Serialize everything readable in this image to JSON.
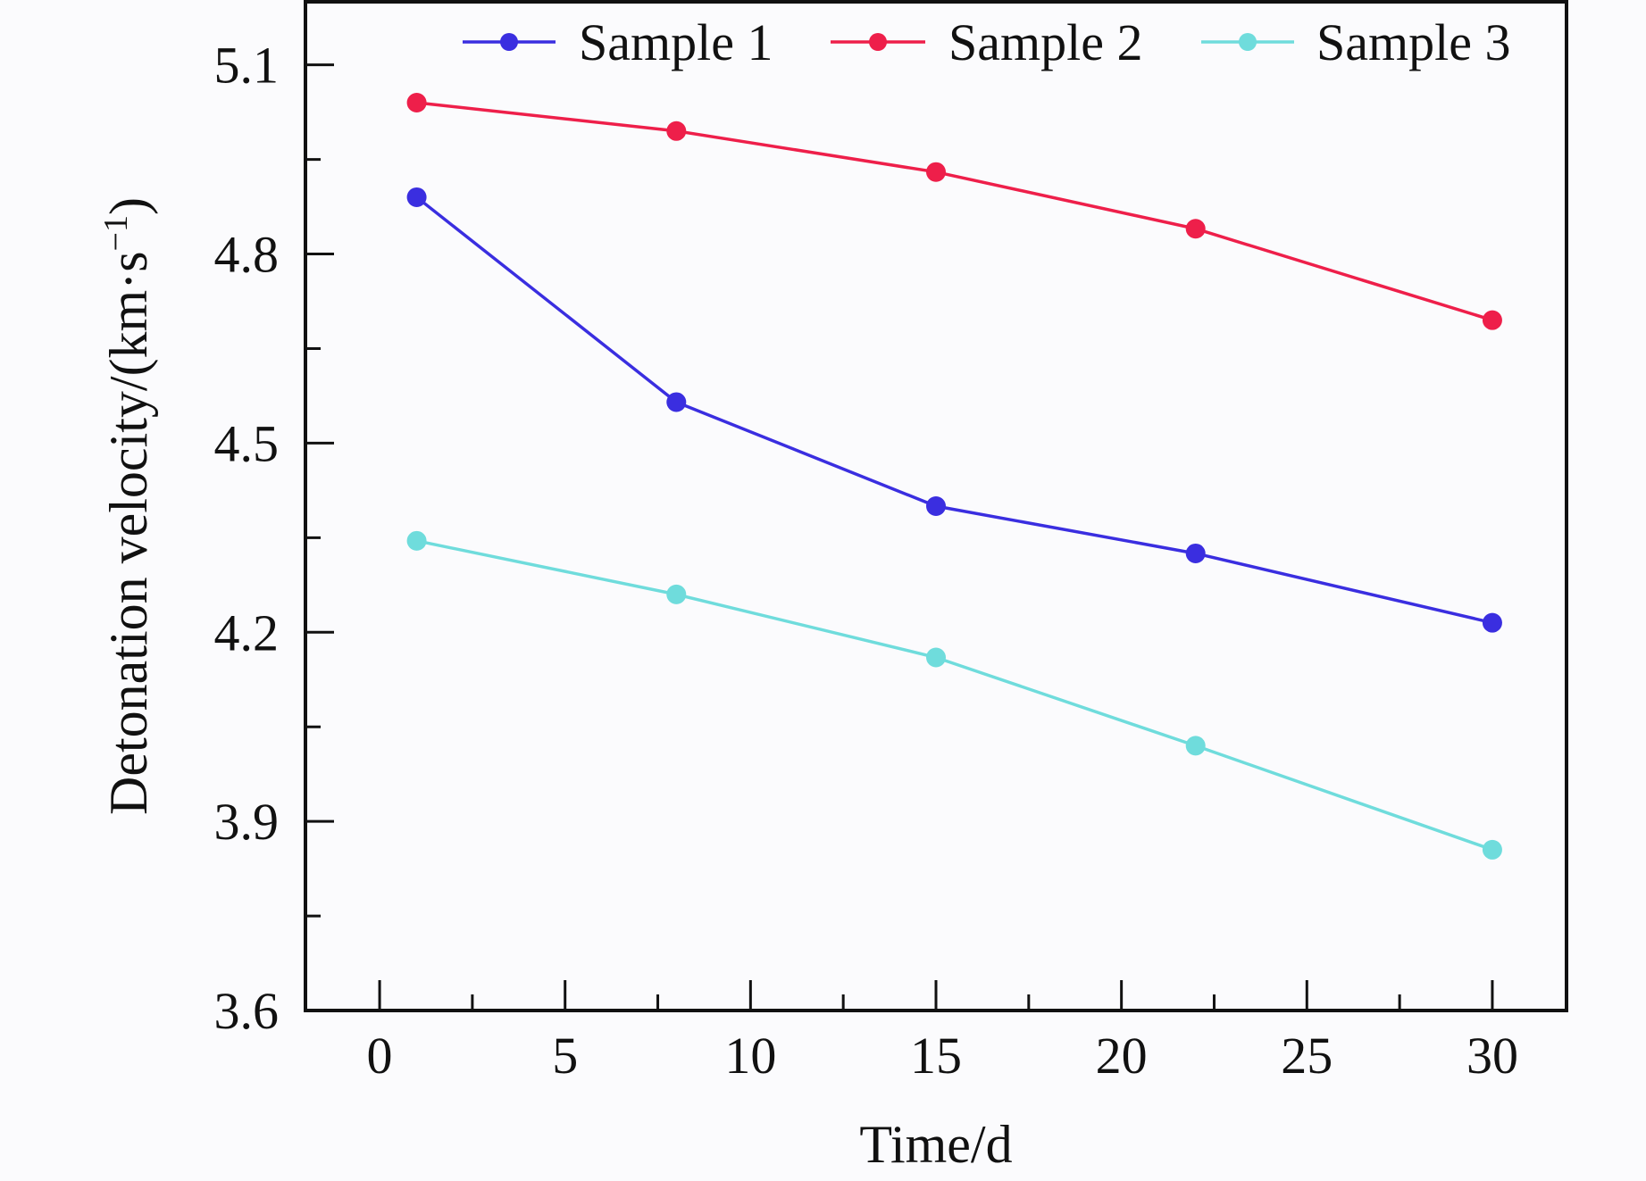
{
  "chart_data": {
    "type": "line",
    "xlabel": "Time/d",
    "ylabel_main": "Detonation velocity/(km·s",
    "ylabel_sup": "−1",
    "ylabel_close": ")",
    "xlim": [
      -2,
      32
    ],
    "ylim": [
      3.6,
      5.2
    ],
    "xticks": [
      0,
      5,
      10,
      15,
      20,
      25,
      30
    ],
    "xtick_labels": [
      "0",
      "5",
      "10",
      "15",
      "20",
      "25",
      "30"
    ],
    "yticks": [
      3.6,
      3.9,
      4.2,
      4.5,
      4.8,
      5.1
    ],
    "ytick_labels": [
      "3.6",
      "3.9",
      "4.2",
      "4.5",
      "4.8",
      "5.1"
    ],
    "legend_position": "top",
    "x": [
      1,
      8,
      15,
      22,
      30
    ],
    "series": [
      {
        "name": "Sample 1",
        "color": "#3a2ee0",
        "values": [
          4.89,
          4.565,
          4.4,
          4.325,
          4.215
        ]
      },
      {
        "name": "Sample 2",
        "color": "#ee1f4a",
        "values": [
          5.04,
          4.995,
          4.93,
          4.84,
          4.695
        ]
      },
      {
        "name": "Sample 3",
        "color": "#6fdcdc",
        "values": [
          4.345,
          4.26,
          4.16,
          4.02,
          3.855
        ]
      }
    ]
  }
}
